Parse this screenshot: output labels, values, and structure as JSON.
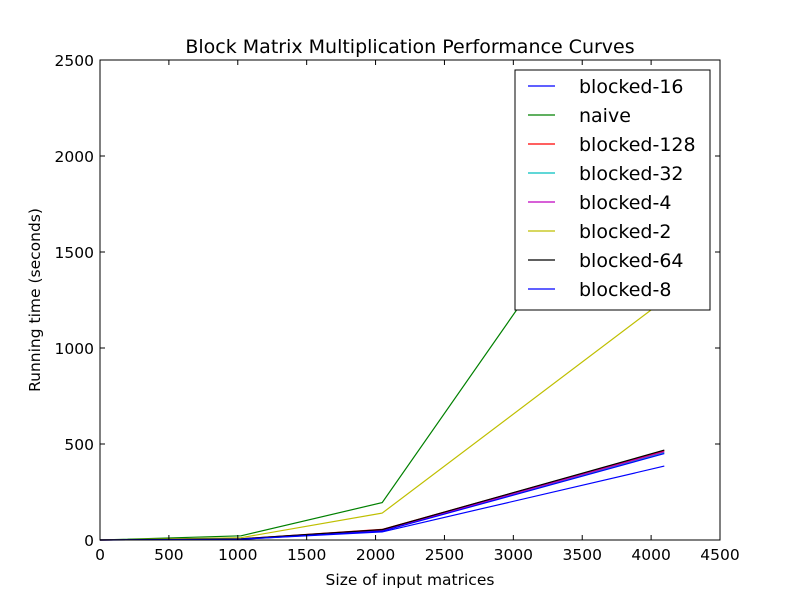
{
  "chart_data": {
    "type": "line",
    "title": "Block Matrix Multiplication Performance Curves",
    "xlabel": "Size of input matrices",
    "ylabel": "Running time (seconds)",
    "xlim": [
      0,
      4500
    ],
    "ylim": [
      0,
      2500
    ],
    "xticks": [
      "0",
      "500",
      "1000",
      "1500",
      "2000",
      "2500",
      "3000",
      "3500",
      "4000",
      "4500"
    ],
    "yticks": [
      "0",
      "500",
      "1000",
      "1500",
      "2000",
      "2500"
    ],
    "grid": false,
    "legend_position": "top-right",
    "x": [
      0,
      1024,
      2048,
      4096
    ],
    "series": [
      {
        "name": "blocked-16",
        "color": "#0000ff",
        "values": [
          0,
          4,
          42,
          385
        ]
      },
      {
        "name": "naive",
        "color": "#008000",
        "values": [
          0,
          22,
          195,
          2300
        ]
      },
      {
        "name": "blocked-128",
        "color": "#ff0000",
        "values": [
          0,
          6,
          55,
          465
        ]
      },
      {
        "name": "blocked-32",
        "color": "#00bfbf",
        "values": [
          0,
          5,
          48,
          455
        ]
      },
      {
        "name": "blocked-4",
        "color": "#bf00bf",
        "values": [
          0,
          5,
          50,
          460
        ]
      },
      {
        "name": "blocked-2",
        "color": "#bfbf00",
        "values": [
          0,
          12,
          140,
          1250
        ]
      },
      {
        "name": "blocked-64",
        "color": "#000000",
        "values": [
          0,
          6,
          54,
          468
        ]
      },
      {
        "name": "blocked-8",
        "color": "#0000ff",
        "values": [
          0,
          4,
          46,
          450
        ]
      }
    ]
  }
}
